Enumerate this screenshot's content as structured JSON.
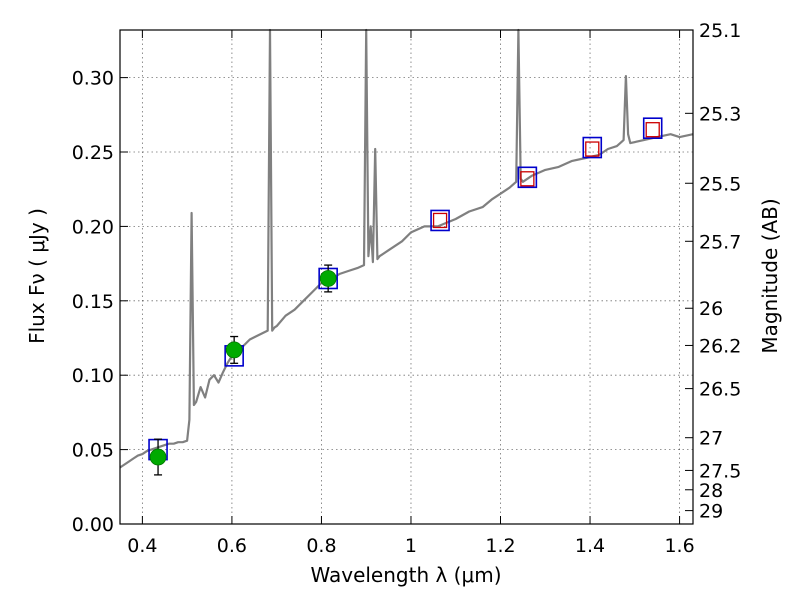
{
  "chart_data": {
    "type": "line",
    "xlabel": "Wavelength  λ (μm)",
    "ylabel": "Flux  Fν  ( μJy )",
    "y2label": "Magnitude (AB)",
    "xlim": [
      0.35,
      1.63
    ],
    "ylim": [
      0.0,
      0.332
    ],
    "grid": true,
    "x_ticks": [
      {
        "value": 0.4,
        "label": "0.4"
      },
      {
        "value": 0.6,
        "label": "0.6"
      },
      {
        "value": 0.8,
        "label": "0.8"
      },
      {
        "value": 1.0,
        "label": "1"
      },
      {
        "value": 1.2,
        "label": "1.2"
      },
      {
        "value": 1.4,
        "label": "1.4"
      },
      {
        "value": 1.6,
        "label": "1.6"
      }
    ],
    "y_ticks": [
      {
        "value": 0.0,
        "label": "0.00"
      },
      {
        "value": 0.05,
        "label": "0.05"
      },
      {
        "value": 0.1,
        "label": "0.10"
      },
      {
        "value": 0.15,
        "label": "0.15"
      },
      {
        "value": 0.2,
        "label": "0.20"
      },
      {
        "value": 0.25,
        "label": "0.25"
      },
      {
        "value": 0.3,
        "label": "0.30"
      }
    ],
    "y2_ticks": [
      {
        "label": "25.1",
        "flux": 0.332
      },
      {
        "label": "25.3",
        "flux": 0.276
      },
      {
        "label": "25.5",
        "flux": 0.229
      },
      {
        "label": "25.7",
        "flux": 0.19
      },
      {
        "label": "26",
        "flux": 0.145
      },
      {
        "label": "26.2",
        "flux": 0.12
      },
      {
        "label": "26.5",
        "flux": 0.091
      },
      {
        "label": "27",
        "flux": 0.058
      },
      {
        "label": "27.5",
        "flux": 0.036
      },
      {
        "label": "28",
        "flux": 0.023
      },
      {
        "label": "29",
        "flux": 0.009
      }
    ],
    "series": [
      {
        "kind": "spectrum",
        "color": "#808080",
        "x": [
          0.35,
          0.36,
          0.37,
          0.38,
          0.39,
          0.4,
          0.41,
          0.42,
          0.43,
          0.44,
          0.45,
          0.46,
          0.47,
          0.48,
          0.49,
          0.5,
          0.505,
          0.51,
          0.515,
          0.52,
          0.53,
          0.54,
          0.55,
          0.56,
          0.57,
          0.58,
          0.59,
          0.6,
          0.62,
          0.64,
          0.66,
          0.68,
          0.685,
          0.69,
          0.695,
          0.7,
          0.72,
          0.74,
          0.76,
          0.78,
          0.8,
          0.82,
          0.84,
          0.86,
          0.88,
          0.895,
          0.9,
          0.905,
          0.91,
          0.915,
          0.92,
          0.925,
          0.93,
          0.95,
          0.98,
          1.0,
          1.03,
          1.06,
          1.1,
          1.13,
          1.16,
          1.18,
          1.2,
          1.22,
          1.235,
          1.24,
          1.245,
          1.25,
          1.27,
          1.3,
          1.33,
          1.36,
          1.39,
          1.42,
          1.44,
          1.46,
          1.475,
          1.48,
          1.485,
          1.49,
          1.52,
          1.55,
          1.58,
          1.6,
          1.63
        ],
        "y": [
          0.038,
          0.04,
          0.042,
          0.044,
          0.046,
          0.047,
          0.049,
          0.05,
          0.051,
          0.052,
          0.053,
          0.054,
          0.054,
          0.055,
          0.055,
          0.056,
          0.07,
          0.209,
          0.08,
          0.082,
          0.092,
          0.085,
          0.097,
          0.1,
          0.095,
          0.102,
          0.108,
          0.113,
          0.118,
          0.124,
          0.127,
          0.13,
          0.332,
          0.13,
          0.132,
          0.133,
          0.14,
          0.144,
          0.15,
          0.156,
          0.162,
          0.164,
          0.168,
          0.17,
          0.172,
          0.174,
          0.332,
          0.18,
          0.2,
          0.176,
          0.252,
          0.178,
          0.18,
          0.184,
          0.19,
          0.196,
          0.2,
          0.2,
          0.205,
          0.21,
          0.213,
          0.218,
          0.222,
          0.226,
          0.23,
          0.332,
          0.232,
          0.23,
          0.234,
          0.238,
          0.24,
          0.244,
          0.246,
          0.248,
          0.252,
          0.254,
          0.258,
          0.301,
          0.262,
          0.256,
          0.258,
          0.26,
          0.262,
          0.26,
          0.262
        ]
      },
      {
        "kind": "blue_squares",
        "color": "#0000cc",
        "x": [
          0.435,
          0.605,
          0.815,
          1.065,
          1.26,
          1.405,
          1.54
        ],
        "y": [
          0.05,
          0.113,
          0.165,
          0.204,
          0.233,
          0.253,
          0.266
        ]
      },
      {
        "kind": "red_squares",
        "color": "#cc0000",
        "x": [
          1.065,
          1.26,
          1.405,
          1.54
        ],
        "y": [
          0.204,
          0.232,
          0.252,
          0.265
        ]
      },
      {
        "kind": "green_points",
        "color": "#00aa00",
        "x": [
          0.435,
          0.605,
          0.815
        ],
        "y": [
          0.045,
          0.117,
          0.165
        ],
        "yerr": [
          0.012,
          0.009,
          0.009
        ]
      }
    ]
  }
}
